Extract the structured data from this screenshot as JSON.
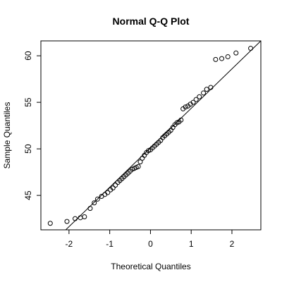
{
  "chart_data": {
    "type": "scatter",
    "title": "Normal Q-Q Plot",
    "x_label": "Theoretical Quantiles",
    "y_label": "Sample Quantiles",
    "xlim": [
      -2.69,
      2.71
    ],
    "ylim": [
      41.3,
      61.6
    ],
    "xticks": [
      -2,
      -1,
      0,
      1,
      2
    ],
    "yticks": [
      45,
      50,
      55,
      60
    ],
    "color": "#000000",
    "x": [
      -2.46,
      -2.05,
      -1.85,
      -1.72,
      -1.62,
      -1.48,
      -1.38,
      -1.3,
      -1.2,
      -1.12,
      -1.05,
      -0.98,
      -0.92,
      -0.86,
      -0.8,
      -0.75,
      -0.7,
      -0.65,
      -0.6,
      -0.55,
      -0.5,
      -0.45,
      -0.4,
      -0.35,
      -0.3,
      -0.25,
      -0.2,
      -0.15,
      -0.1,
      -0.05,
      0.0,
      0.05,
      0.1,
      0.15,
      0.2,
      0.25,
      0.3,
      0.35,
      0.4,
      0.45,
      0.5,
      0.55,
      0.6,
      0.65,
      0.7,
      0.75,
      0.8,
      0.86,
      0.92,
      0.98,
      1.05,
      1.12,
      1.2,
      1.3,
      1.38,
      1.48,
      1.6,
      1.75,
      1.9,
      2.1,
      2.46
    ],
    "values": [
      42.0,
      42.2,
      42.5,
      42.6,
      42.7,
      43.6,
      44.2,
      44.6,
      44.9,
      45.1,
      45.3,
      45.6,
      45.8,
      46.1,
      46.4,
      46.6,
      46.8,
      47.0,
      47.2,
      47.4,
      47.6,
      47.8,
      47.9,
      48.0,
      48.1,
      48.6,
      49.0,
      49.3,
      49.6,
      49.8,
      49.9,
      50.1,
      50.3,
      50.5,
      50.7,
      50.9,
      51.2,
      51.4,
      51.6,
      51.8,
      52.0,
      52.3,
      52.6,
      52.8,
      52.9,
      53.1,
      54.3,
      54.5,
      54.6,
      54.8,
      55.0,
      55.3,
      55.6,
      56.0,
      56.4,
      56.6,
      59.6,
      59.7,
      59.9,
      60.3,
      60.8
    ],
    "line": {
      "x": [
        -2.08,
        2.71
      ],
      "y": [
        41.3,
        61.6
      ]
    }
  }
}
